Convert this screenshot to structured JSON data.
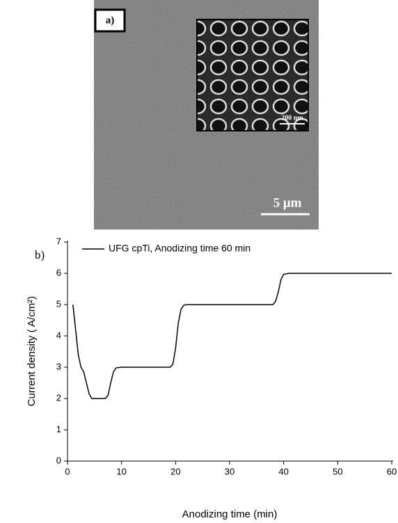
{
  "panel_a": {
    "label": "a)",
    "inset_scale": "200 nm",
    "scale_bar": "5 μm"
  },
  "chart_data": {
    "type": "line",
    "panel_label": "b)",
    "x_label": "Anodizing time (min)",
    "y_label": "Current density ( A/cm²)",
    "x": [
      1,
      1.5,
      2,
      2.5,
      3,
      3.5,
      4,
      4.5,
      5,
      7,
      7.5,
      8,
      8.5,
      9,
      10,
      19,
      19.5,
      20,
      20.5,
      21,
      21.5,
      22,
      38,
      38.5,
      39,
      39.5,
      40,
      41,
      60
    ],
    "series": [
      {
        "name": "UFG cpTi, Anodizing time 60 min",
        "color": "#000000",
        "values": [
          5,
          4.2,
          3.4,
          3.0,
          2.85,
          2.5,
          2.15,
          2.0,
          2,
          2,
          2.1,
          2.5,
          2.85,
          2.98,
          3,
          3,
          3.1,
          3.6,
          4.4,
          4.85,
          4.98,
          5,
          5,
          5.1,
          5.4,
          5.8,
          5.97,
          6,
          6
        ]
      }
    ],
    "xlim": [
      0,
      60
    ],
    "ylim": [
      0,
      7
    ],
    "xticks": [
      0,
      10,
      20,
      30,
      40,
      50,
      60
    ],
    "yticks": [
      0,
      1,
      2,
      3,
      4,
      5,
      6,
      7
    ],
    "legend": "upper left"
  }
}
